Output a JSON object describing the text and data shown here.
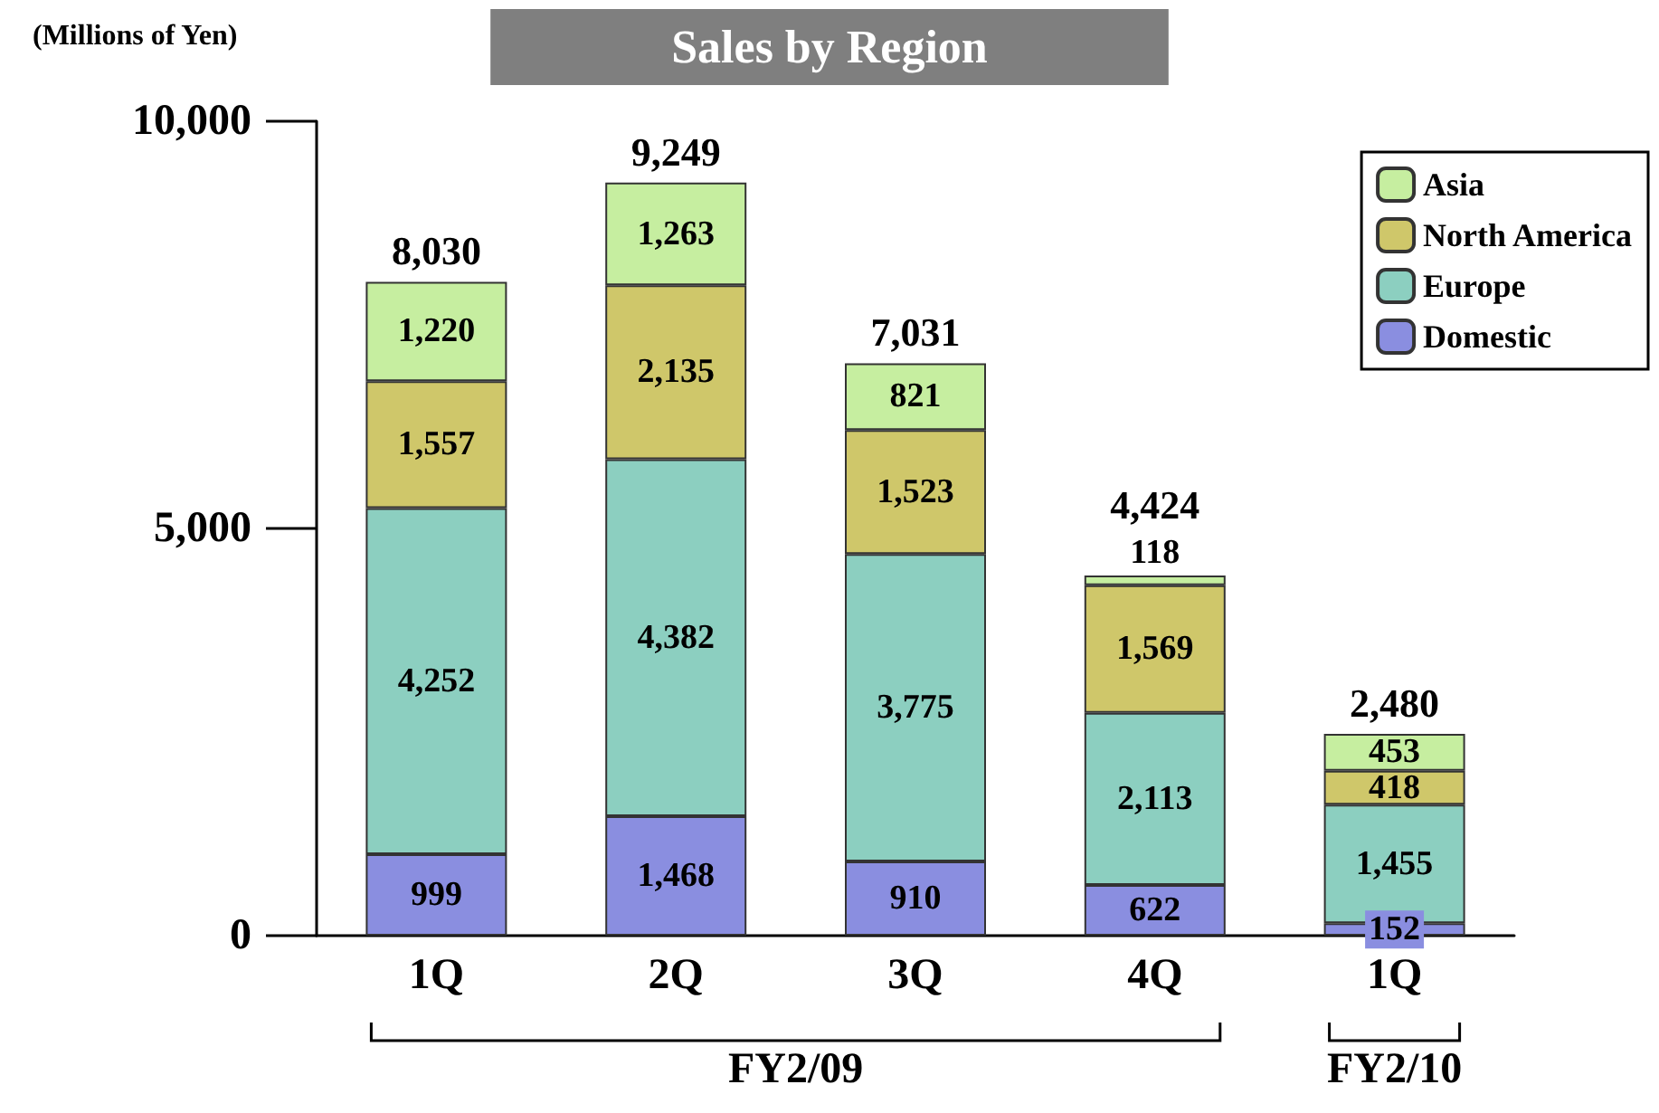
{
  "chart_data": {
    "type": "bar",
    "title": "Sales by Region",
    "ylabel": "(Millions of Yen)",
    "categories": [
      "1Q",
      "2Q",
      "3Q",
      "4Q",
      "1Q"
    ],
    "series": [
      {
        "name": "Domestic",
        "color": "#8a8ee0",
        "values": [
          999,
          1468,
          910,
          622,
          152
        ],
        "value_labels": [
          "999",
          "1,468",
          "910",
          "622",
          "152"
        ]
      },
      {
        "name": "Europe",
        "color": "#8ccfc0",
        "values": [
          4252,
          4382,
          3775,
          2113,
          1455
        ],
        "value_labels": [
          "4,252",
          "4,382",
          "3,775",
          "2,113",
          "1,455"
        ]
      },
      {
        "name": "North America",
        "color": "#cfc76a",
        "values": [
          1557,
          2135,
          1523,
          1569,
          418
        ],
        "value_labels": [
          "1,557",
          "2,135",
          "1,523",
          "1,569",
          "418"
        ]
      },
      {
        "name": "Asia",
        "color": "#c6eea0",
        "values": [
          1220,
          1263,
          821,
          118,
          453
        ],
        "value_labels": [
          "1,220",
          "1,263",
          "821",
          "118",
          "453"
        ]
      }
    ],
    "stacked": true,
    "totals": [
      "8,030",
      "9,249",
      "7,031",
      "4,424",
      "2,480"
    ],
    "ylim": [
      0,
      10000
    ],
    "yticks": [
      {
        "value": 0,
        "label": "0"
      },
      {
        "value": 5000,
        "label": "5,000"
      },
      {
        "value": 10000,
        "label": "10,000"
      }
    ],
    "grid": false,
    "legend": "top right",
    "annotations": [
      "FY2/09",
      "FY2/10"
    ]
  }
}
